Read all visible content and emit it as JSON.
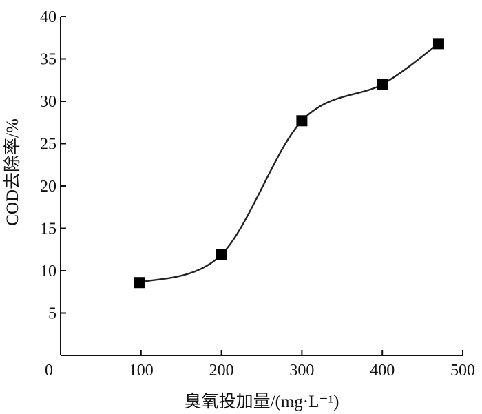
{
  "chart_data": {
    "type": "line",
    "title": "",
    "xlabel": "臭氧投加量/(mg·L⁻¹)",
    "ylabel": "COD去除率/%",
    "xlim": [
      0,
      500
    ],
    "ylim": [
      0,
      40
    ],
    "x_ticks": [
      0,
      100,
      200,
      300,
      400,
      500
    ],
    "y_ticks": [
      5,
      10,
      15,
      20,
      25,
      30,
      35,
      40
    ],
    "x_tick_labels": [
      "0",
      "100",
      "200",
      "300",
      "400",
      "500"
    ],
    "y_tick_labels": [
      "5",
      "10",
      "15",
      "20",
      "25",
      "30",
      "35",
      "40"
    ],
    "series": [
      {
        "marker": "square",
        "smooth": true,
        "color": "#000000",
        "x": [
          98,
          200,
          300,
          400,
          470
        ],
        "y": [
          8.6,
          11.9,
          27.7,
          32.0,
          36.8
        ]
      }
    ],
    "grid": false,
    "legend": "none"
  }
}
